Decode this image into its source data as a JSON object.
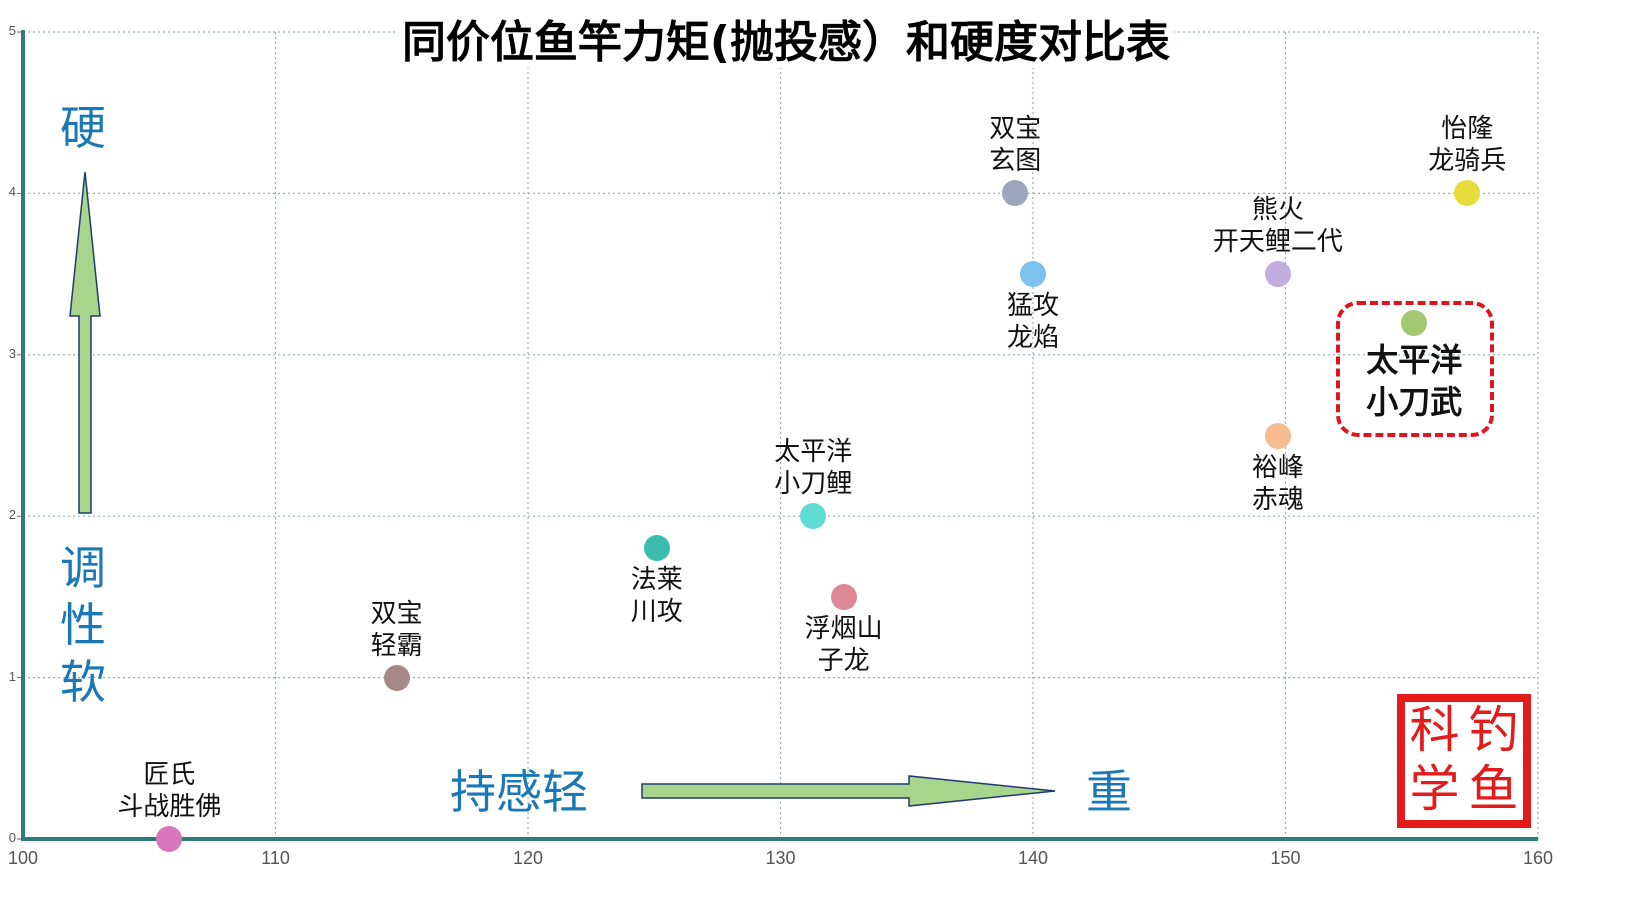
{
  "chart_data": {
    "type": "scatter",
    "title": "同价位鱼竿力矩(抛投感）和硬度对比表",
    "xlabel": "持感轻 → 重",
    "ylabel": "调性软 → 硬",
    "xlim": [
      100,
      160
    ],
    "ylim": [
      0,
      5
    ],
    "xticks": [
      100,
      110,
      120,
      130,
      140,
      150,
      160
    ],
    "yticks": [
      0,
      1,
      2,
      3,
      4,
      5
    ],
    "grid": true,
    "legend": "none",
    "points": [
      {
        "brand": "匠氏",
        "model": "斗战胜佛",
        "x": 105.8,
        "y": 0,
        "color": "#d977bb",
        "label_pos": "above"
      },
      {
        "brand": "双宝",
        "model": "轻霸",
        "x": 114.8,
        "y": 1,
        "color": "#a78888",
        "label_pos": "above"
      },
      {
        "brand": "法莱",
        "model": "川攻",
        "x": 125.1,
        "y": 1.8,
        "color": "#3cbcae",
        "label_pos": "below"
      },
      {
        "brand": "太平洋",
        "model": "小刀鲤",
        "x": 131.3,
        "y": 2,
        "color": "#5fdcd4",
        "label_pos": "above"
      },
      {
        "brand": "浮烟山",
        "model": "子龙",
        "x": 132.5,
        "y": 1.5,
        "color": "#dc8896",
        "label_pos": "below"
      },
      {
        "brand": "双宝",
        "model": "玄图",
        "x": 139.3,
        "y": 4,
        "color": "#9ea5bc",
        "label_pos": "above"
      },
      {
        "brand": "猛攻",
        "model": "龙焰",
        "x": 140,
        "y": 3.5,
        "color": "#7cc2ee",
        "label_pos": "below"
      },
      {
        "brand": "熊火",
        "model": "开天鲤二代",
        "x": 149.7,
        "y": 3.5,
        "color": "#c1acde",
        "label_pos": "above"
      },
      {
        "brand": "裕峰",
        "model": "赤魂",
        "x": 149.7,
        "y": 2.5,
        "color": "#f6bc90",
        "label_pos": "below"
      },
      {
        "brand": "太平洋",
        "model": "小刀武",
        "x": 155.1,
        "y": 3.2,
        "color": "#a4c872",
        "label_pos": "below",
        "highlighted": true
      },
      {
        "brand": "怡隆",
        "model": "龙骑兵",
        "x": 157.2,
        "y": 4,
        "color": "#e6dc3c",
        "label_pos": "above"
      }
    ],
    "annotations": {
      "y_top": "硬",
      "y_bottom": [
        "调",
        "性",
        "软"
      ],
      "x_left": "持感轻",
      "x_right": "重"
    }
  },
  "seal": {
    "chars": [
      "科",
      "钓",
      "学",
      "鱼"
    ]
  },
  "colors": {
    "axis": "#2e7d78",
    "grid": "#8fb0b0",
    "annotation_text": "#1a78b6",
    "arrow_fill": "#a8d48c",
    "arrow_stroke": "#1f3b6e",
    "highlight": "#e0141e",
    "seal": "#e31b1b"
  }
}
